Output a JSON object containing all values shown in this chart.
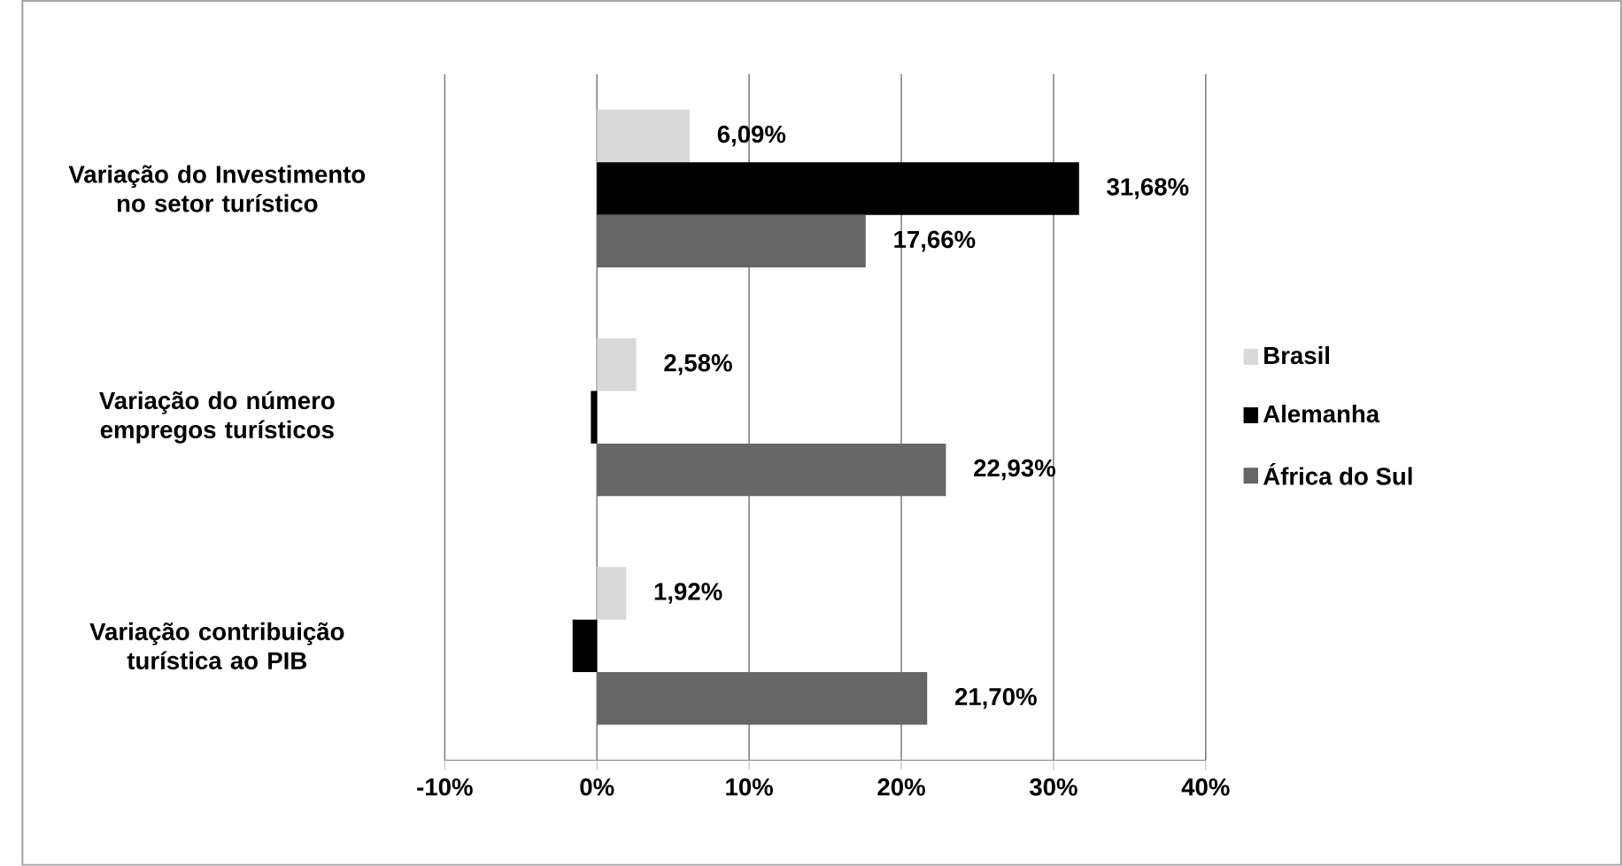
{
  "chart_data": {
    "type": "bar",
    "orientation": "horizontal",
    "categories": [
      "Variação do Investimento no setor turístico",
      "Variação do número empregos turísticos",
      "Variação contribuição turística ao  PIB"
    ],
    "series": [
      {
        "name": "Brasil",
        "color": "#d9d9d9",
        "values": [
          6.09,
          2.58,
          1.92
        ],
        "value_labels": [
          "6,09%",
          "2,58%",
          "1,92%"
        ]
      },
      {
        "name": "Alemanha",
        "color": "#000000",
        "values": [
          31.68,
          -0.4,
          -1.6
        ],
        "value_labels": [
          "31,68%",
          null,
          null
        ]
      },
      {
        "name": "África do Sul",
        "color": "#666666",
        "values": [
          17.66,
          22.93,
          21.7
        ],
        "value_labels": [
          "17,66%",
          "22,93%",
          "21,70%"
        ]
      }
    ],
    "xlim": [
      -10,
      40
    ],
    "xticks": [
      {
        "value": -10,
        "label": "-10%"
      },
      {
        "value": 0,
        "label": "0%"
      },
      {
        "value": 10,
        "label": "10%"
      },
      {
        "value": 20,
        "label": "20%"
      },
      {
        "value": 30,
        "label": "30%"
      },
      {
        "value": 40,
        "label": "40%"
      }
    ],
    "grid": "x",
    "legend": "right"
  }
}
